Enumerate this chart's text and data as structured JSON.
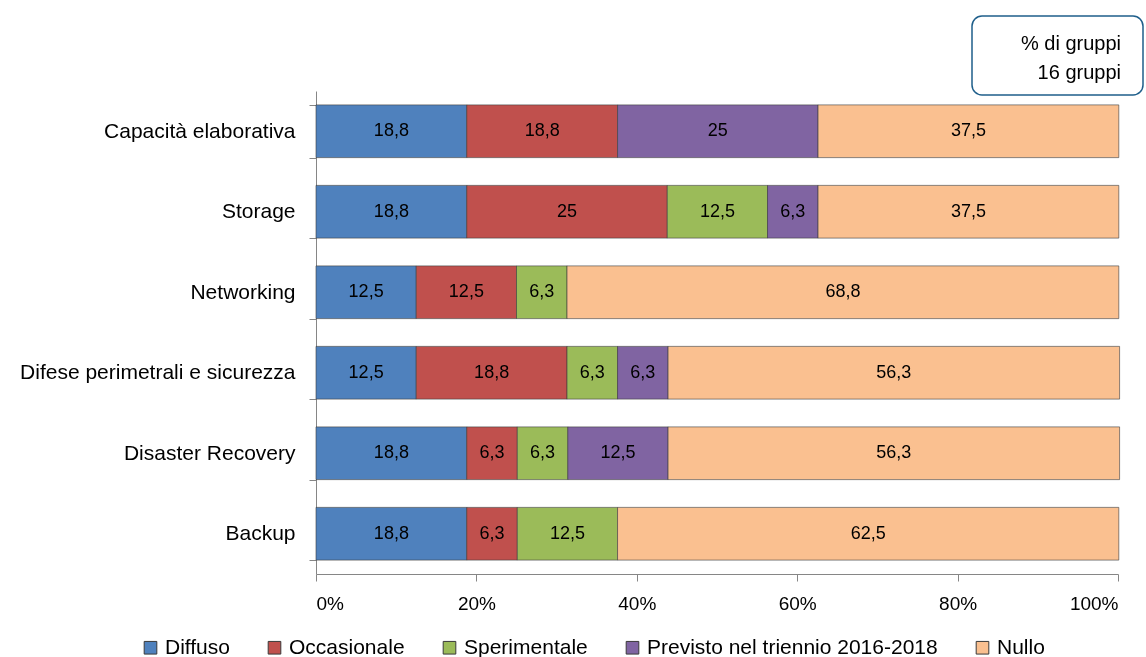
{
  "chart_data": {
    "type": "bar",
    "orientation": "horizontal",
    "stacked": true,
    "legend": "bottom",
    "annotations": [
      "% di gruppi",
      "16 gruppi"
    ],
    "categories": [
      "Capacità elaborativa",
      "Storage",
      "Networking",
      "Difese perimetrali e sicurezza",
      "Disaster Recovery",
      "Backup"
    ],
    "xlim": [
      0,
      100
    ],
    "xticks": [
      {
        "value": 0,
        "label": "0%"
      },
      {
        "value": 20,
        "label": "20%"
      },
      {
        "value": 40,
        "label": "40%"
      },
      {
        "value": 60,
        "label": "60%"
      },
      {
        "value": 80,
        "label": "80%"
      },
      {
        "value": 100,
        "label": "100%"
      }
    ],
    "series": [
      {
        "name": "Diffuso",
        "color": "#4f81bd",
        "values": [
          18.8,
          18.8,
          12.5,
          12.5,
          18.8,
          18.8
        ],
        "value_labels": [
          "18,8",
          "18,8",
          "12,5",
          "12,5",
          "18,8",
          "18,8"
        ]
      },
      {
        "name": "Occasionale",
        "color": "#c0504d",
        "values": [
          18.8,
          25,
          12.5,
          18.8,
          6.3,
          6.3
        ],
        "value_labels": [
          "18,8",
          "25",
          "12,5",
          "18,8",
          "6,3",
          "6,3"
        ]
      },
      {
        "name": "Sperimentale",
        "color": "#9bbb59",
        "values": [
          null,
          12.5,
          6.3,
          6.3,
          6.3,
          12.5
        ],
        "value_labels": [
          null,
          "12,5",
          "6,3",
          "6,3",
          "6,3",
          "12,5"
        ]
      },
      {
        "name": "Previsto nel triennio 2016-2018",
        "color": "#8064a2",
        "values": [
          25,
          6.3,
          null,
          6.3,
          12.5,
          null
        ],
        "value_labels": [
          "25",
          "6,3",
          null,
          "6,3",
          "12,5",
          null
        ]
      },
      {
        "name": "Nullo",
        "color": "#fac090",
        "values": [
          37.5,
          37.5,
          68.8,
          56.3,
          56.3,
          62.5
        ],
        "value_labels": [
          "37,5",
          "37,5",
          "68,8",
          "56,3",
          "56,3",
          "62,5"
        ]
      }
    ]
  }
}
